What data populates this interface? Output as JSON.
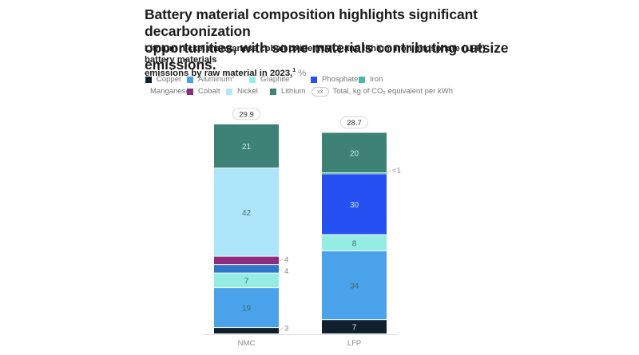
{
  "header": {
    "title_line1": "Battery material composition highlights significant decarbonization",
    "title_line2": "opportunities, with some materials contributing outsize emissions.",
    "subtitle_line1": "Lithium nickel manganese cobalt oxide (NMC) and lithium iron phosphate (LFP) battery materials",
    "subtitle_line2": "emissions by raw material in 2023,",
    "subtitle_footnote": "1",
    "subtitle_unit": "%"
  },
  "legend": {
    "rows": [
      [
        {
          "label": "Copper",
          "sup": "",
          "color": "#0f1f2e"
        },
        {
          "label": "Aluminum",
          "sup": "2",
          "color": "#4aa3ea"
        },
        {
          "label": "Graphite",
          "sup": "3",
          "color": "#94ece3"
        },
        {
          "label": "Phosphate",
          "sup": "",
          "color": "#2651f2"
        },
        {
          "label": "Iron",
          "sup": "",
          "color": "#4cb5ac"
        }
      ],
      [
        {
          "label": "Manganese",
          "sup": "",
          "color": "#2f77c8"
        },
        {
          "label": "Cobalt",
          "sup": "",
          "color": "#8e2b7d"
        },
        {
          "label": "Nickel",
          "sup": "",
          "color": "#ade5fb"
        },
        {
          "label": "Lithium",
          "sup": "",
          "color": "#3d8177"
        }
      ]
    ],
    "pill_text": "xx",
    "pill_label": "Total, kg of CO₂ equivalent per kWh"
  },
  "chart_data": {
    "type": "bar",
    "stacked": true,
    "orientation": "vertical",
    "title": "Lithium nickel manganese cobalt oxide (NMC) and lithium iron phosphate (LFP) battery materials emissions by raw material in 2023, %",
    "xlabel": "",
    "ylabel": "",
    "categories": [
      "NMC",
      "LFP"
    ],
    "totals": [
      29.9,
      28.7
    ],
    "totals_unit": "kg of CO2 equivalent per kWh",
    "stack_order_bottom_to_top": [
      "Copper",
      "Aluminum",
      "Graphite",
      "Manganese",
      "Cobalt",
      "Nickel",
      "Phosphate",
      "Iron",
      "Lithium"
    ],
    "series": [
      {
        "name": "Copper",
        "color": "#0f1f2e",
        "values": [
          3,
          7
        ],
        "labels": [
          "3",
          "7"
        ]
      },
      {
        "name": "Aluminum",
        "color": "#4aa3ea",
        "values": [
          19,
          34
        ],
        "labels": [
          "19",
          "34"
        ]
      },
      {
        "name": "Graphite",
        "color": "#94ece3",
        "values": [
          7,
          8
        ],
        "labels": [
          "7",
          "8"
        ]
      },
      {
        "name": "Manganese",
        "color": "#2f77c8",
        "values": [
          4,
          0
        ],
        "labels": [
          "4",
          ""
        ]
      },
      {
        "name": "Cobalt",
        "color": "#8e2b7d",
        "values": [
          4,
          0
        ],
        "labels": [
          "4",
          ""
        ]
      },
      {
        "name": "Nickel",
        "color": "#ade5fb",
        "values": [
          42,
          0
        ],
        "labels": [
          "42",
          ""
        ]
      },
      {
        "name": "Phosphate",
        "color": "#2651f2",
        "values": [
          0,
          30
        ],
        "labels": [
          "",
          "30"
        ]
      },
      {
        "name": "Iron",
        "color": "#4cb5ac",
        "values": [
          0,
          0.5
        ],
        "labels": [
          "",
          "<1"
        ]
      },
      {
        "name": "Lithium",
        "color": "#3d8177",
        "values": [
          21,
          20
        ],
        "labels": [
          "21",
          "20"
        ]
      }
    ],
    "outside_labels": {
      "NMC": [
        "Copper",
        "Manganese",
        "Cobalt"
      ],
      "LFP": [
        "Iron"
      ]
    },
    "legend_position": "top-left",
    "grid": false
  }
}
